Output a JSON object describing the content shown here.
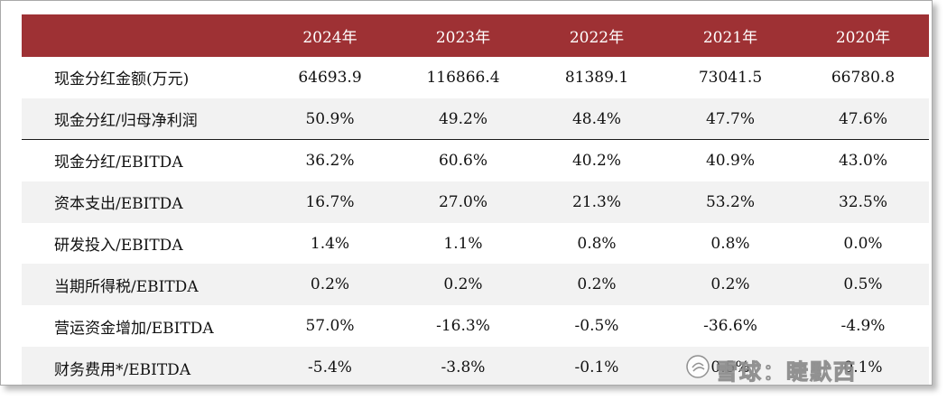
{
  "table": {
    "header": [
      "",
      "2024年",
      "2023年",
      "2022年",
      "2021年",
      "2020年"
    ],
    "rows": [
      {
        "label": "现金分红金额(万元)",
        "values": [
          "64693.9",
          "116866.4",
          "81389.1",
          "73041.5",
          "66780.8"
        ]
      },
      {
        "label": "现金分红/归母净利润",
        "values": [
          "50.9%",
          "49.2%",
          "48.4%",
          "47.7%",
          "47.6%"
        ]
      },
      {
        "label": "现金分红/EBITDA",
        "values": [
          "36.2%",
          "60.6%",
          "40.2%",
          "40.9%",
          "43.0%"
        ]
      },
      {
        "label": "资本支出/EBITDA",
        "values": [
          "16.7%",
          "27.0%",
          "21.3%",
          "53.2%",
          "32.5%"
        ]
      },
      {
        "label": "研发投入/EBITDA",
        "values": [
          "1.4%",
          "1.1%",
          "0.8%",
          "0.8%",
          "0.0%"
        ]
      },
      {
        "label": "当期所得税/EBITDA",
        "values": [
          "0.2%",
          "0.2%",
          "0.2%",
          "0.2%",
          "0.5%"
        ]
      },
      {
        "label": "营运资金增加/EBITDA",
        "values": [
          "57.0%",
          "-16.3%",
          "-0.5%",
          "-36.6%",
          "-4.9%"
        ]
      },
      {
        "label": "财务费用*/EBITDA",
        "values": [
          "-5.4%",
          "-3.8%",
          "-0.1%",
          "0.5%",
          "0.1%"
        ]
      }
    ]
  },
  "watermark": {
    "text": "雪球：睫默西",
    "icon": "snowball-logo-icon"
  },
  "colors": {
    "header_background": "#9e3134",
    "header_text": "#ffffff",
    "alt_row_background": "#f2f2f2"
  }
}
